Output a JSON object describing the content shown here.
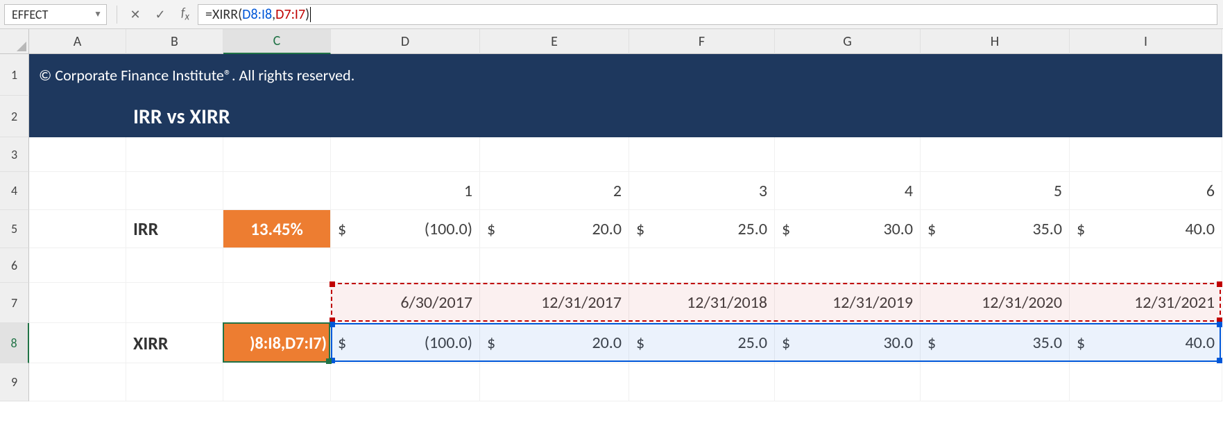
{
  "formula_bar": {
    "name_box": "EFFECT",
    "formula_prefix": "=XIRR(",
    "ref1": "D8:I8",
    "sep": ",",
    "ref2": "D7:I7",
    "formula_suffix": ")"
  },
  "columns": {
    "labels": [
      "A",
      "B",
      "C",
      "D",
      "E",
      "F",
      "G",
      "H",
      "I"
    ],
    "widths": [
      140,
      140,
      155,
      215,
      215,
      210,
      210,
      215,
      220
    ],
    "active": "C"
  },
  "rows": {
    "labels": [
      "1",
      "2",
      "3",
      "4",
      "5",
      "6",
      "7",
      "8",
      "9"
    ],
    "heights": [
      60,
      60,
      50,
      55,
      55,
      50,
      58,
      58,
      55
    ],
    "active": "8"
  },
  "banner": {
    "copyright": "© Corporate Finance Institute®. All rights reserved.",
    "title": "IRR vs XIRR",
    "bg": "#1e385e",
    "fg": "#ffffff"
  },
  "period_numbers": [
    "1",
    "2",
    "3",
    "4",
    "5",
    "6"
  ],
  "irr": {
    "label": "IRR",
    "result": "13.45%",
    "cashflows": [
      "(100.0)",
      "20.0",
      "25.0",
      "30.0",
      "35.0",
      "40.0"
    ]
  },
  "dates": [
    "6/30/2017",
    "12/31/2017",
    "12/31/2018",
    "12/31/2019",
    "12/31/2020",
    "12/31/2021"
  ],
  "xirr": {
    "label": "XIRR",
    "editing_text": ")8:I8,D7:I7)",
    "cashflows": [
      "(100.0)",
      "20.0",
      "25.0",
      "30.0",
      "35.0",
      "40.0"
    ]
  },
  "currency_symbol": "$",
  "colors": {
    "orange": "#ed7d31",
    "ref_blue": "#0057d8",
    "ref_red": "#c00000",
    "select_green": "#217346"
  }
}
